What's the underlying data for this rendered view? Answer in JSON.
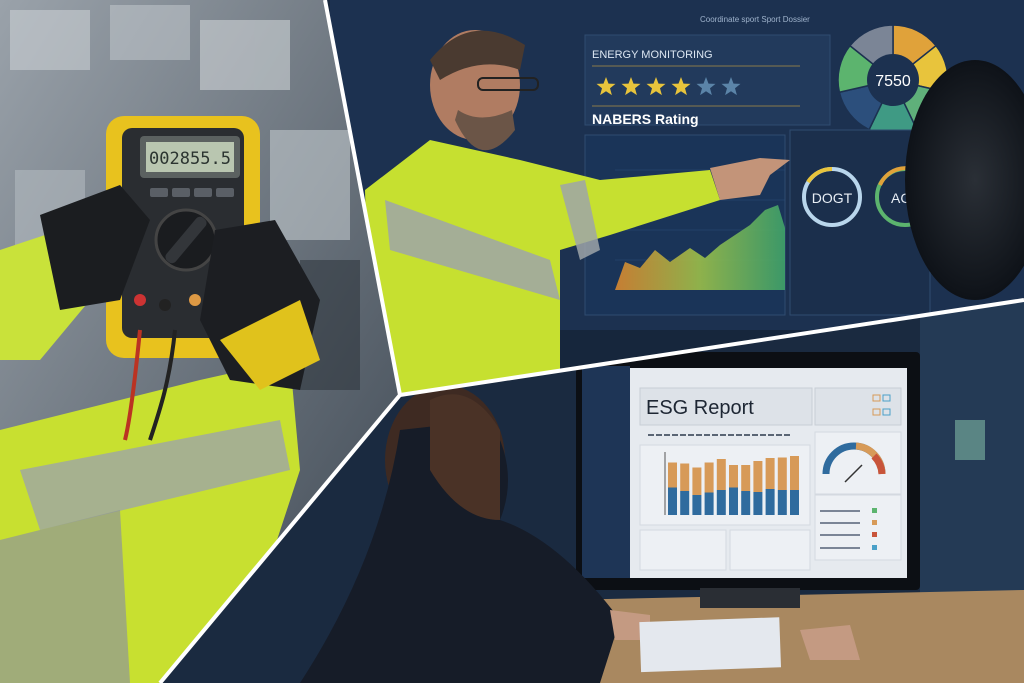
{
  "multimeter": {
    "reading": "002855.5"
  },
  "dashboard": {
    "header_text": "Coordinate sport  Sport  Dossier",
    "energy_title": "ENERGY MONITORING",
    "star_rating": 4,
    "star_max": 6,
    "rating_label": "NABERS Rating",
    "donut_value": "7550",
    "gauge_left_label": "DOGT",
    "gauge_right_label": "ACT",
    "donut_colors": [
      "#e0a23a",
      "#e8c43c",
      "#5fb07a",
      "#3f9a84",
      "#2c4f7c",
      "#5cb46e",
      "#7b8596"
    ]
  },
  "report": {
    "title": "ESG Report",
    "bars": [
      {
        "bottom": 55,
        "top": 50
      },
      {
        "bottom": 48,
        "top": 55
      },
      {
        "bottom": 40,
        "top": 55
      },
      {
        "bottom": 45,
        "top": 60
      },
      {
        "bottom": 50,
        "top": 62
      },
      {
        "bottom": 55,
        "top": 45
      },
      {
        "bottom": 48,
        "top": 52
      },
      {
        "bottom": 46,
        "top": 62
      },
      {
        "bottom": 52,
        "top": 62
      },
      {
        "bottom": 50,
        "top": 65
      },
      {
        "bottom": 50,
        "top": 68
      }
    ],
    "colors": {
      "bottom": "#2f6b9e",
      "top": "#d79a58",
      "accent": "#c8543a"
    }
  }
}
